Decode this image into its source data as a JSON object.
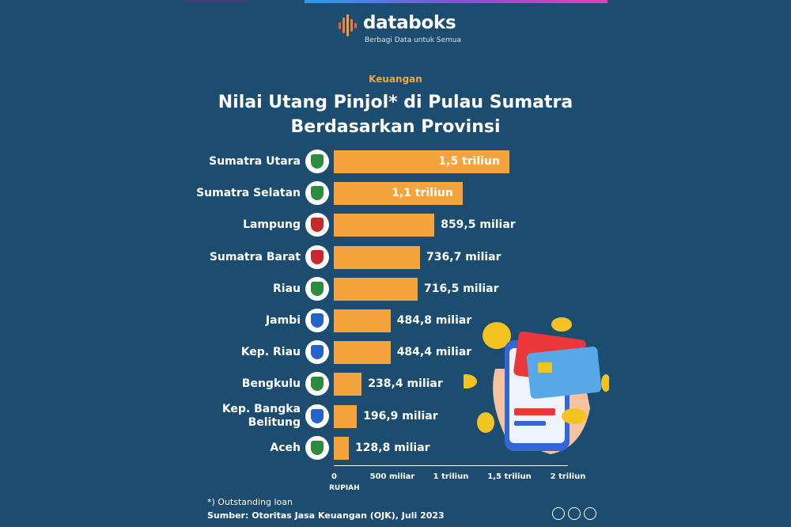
{
  "brand": {
    "name": "databoks",
    "tagline": "Berbagi Data untuk Semua"
  },
  "category": "Keuangan",
  "title_line1": "Nilai Utang Pinjol* di Pulau Sumatra",
  "title_line2": "Berdasarkan Provinsi",
  "colors": {
    "background": "#1c4c6f",
    "bar": "#f5a33c",
    "accent_text": "#f3a63a"
  },
  "chart_data": {
    "type": "bar",
    "orientation": "horizontal",
    "categories": [
      "Sumatra Utara",
      "Sumatra Selatan",
      "Lampung",
      "Sumatra Barat",
      "Riau",
      "Jambi",
      "Kep. Riau",
      "Bengkulu",
      "Kep. Bangka Belitung",
      "Aceh"
    ],
    "label_lines": [
      [
        "Sumatra Utara"
      ],
      [
        "Sumatra Selatan"
      ],
      [
        "Lampung"
      ],
      [
        "Sumatra Barat"
      ],
      [
        "Riau"
      ],
      [
        "Jambi"
      ],
      [
        "Kep. Riau"
      ],
      [
        "Bengkulu"
      ],
      [
        "Kep. Bangka",
        "Belitung"
      ],
      [
        "Aceh"
      ]
    ],
    "values": [
      1500,
      1100,
      859.5,
      736.7,
      716.5,
      484.8,
      484.4,
      238.4,
      196.9,
      128.8
    ],
    "value_labels": [
      "1,5 triliun",
      "1,1 triliun",
      "859,5 miliar",
      "736,7 miliar",
      "716,5 miliar",
      "484,8 miliar",
      "484,4 miliar",
      "238,4 miliar",
      "196,9 miliar",
      "128,8 miliar"
    ],
    "x_ticks": [
      0,
      500,
      1000,
      1500,
      2000
    ],
    "x_tick_labels": [
      "0",
      "500 miliar",
      "1 triliun",
      "1,5 triliun",
      "2 triliun"
    ],
    "xlabel": "RUPIAH",
    "xlim": [
      0,
      2000
    ]
  },
  "footnote": "*) Outstanding loan",
  "source": "Sumber: Otoritas Jasa Keuangan (OJK), Juli 2023",
  "icons": [
    "databoks-logo-icon",
    "province-emblem-icon",
    "creative-commons-icon",
    "attribution-icon",
    "no-derivatives-icon",
    "phone-with-cards-illustration"
  ]
}
